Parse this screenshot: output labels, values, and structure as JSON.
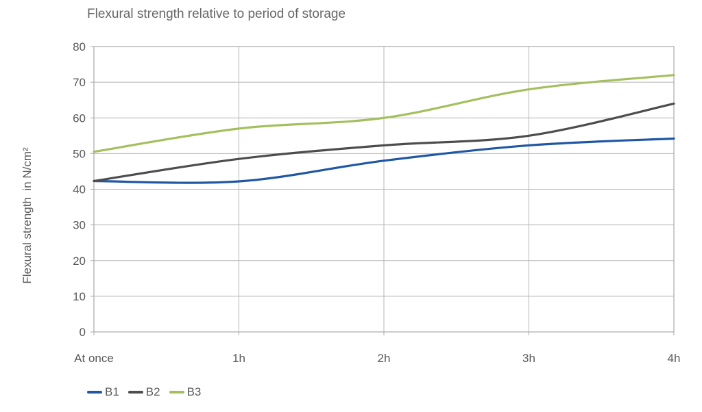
{
  "chart_data": {
    "type": "line",
    "title": "Flexural strength relative to period of storage",
    "ylabel": "Flexural strength  in N/cm²",
    "xlabel": "",
    "categories": [
      "At once",
      "1h",
      "2h",
      "3h",
      "4h"
    ],
    "series": [
      {
        "name": "B1",
        "color": "#1f57a5",
        "values": [
          42.3,
          42.2,
          48.0,
          52.3,
          54.2
        ]
      },
      {
        "name": "B2",
        "color": "#4d4d4d",
        "values": [
          42.3,
          48.5,
          52.3,
          55.0,
          64.0
        ]
      },
      {
        "name": "B3",
        "color": "#a4c05e",
        "values": [
          50.5,
          57.0,
          60.0,
          68.0,
          72.0
        ]
      }
    ],
    "ylim": [
      0,
      80
    ],
    "ytick_step": 10,
    "ytick_labels": [
      "0",
      "10",
      "20",
      "30",
      "40",
      "50",
      "60",
      "70",
      "80"
    ],
    "grid": true,
    "line_smooth": true,
    "legend_position": "bottom-left"
  },
  "style": {
    "grid_color": "#b5b5b5",
    "border_color": "#a8a8a8",
    "tick_color": "#a8a8a8",
    "text_color": "#595959",
    "title_color": "#666666",
    "background": "#ffffff",
    "line_width": 3.2
  }
}
